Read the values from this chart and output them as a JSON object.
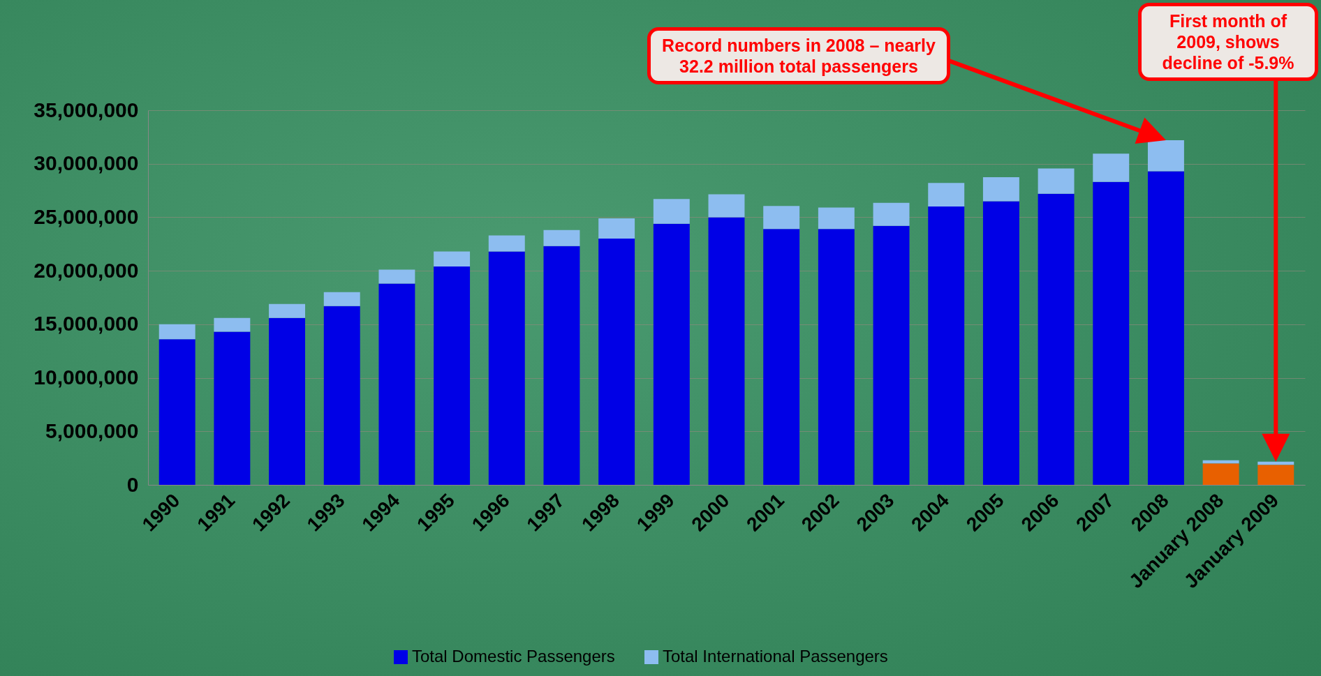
{
  "chart_data": {
    "type": "bar",
    "stacked": true,
    "categories": [
      "1990",
      "1991",
      "1992",
      "1993",
      "1994",
      "1995",
      "1996",
      "1997",
      "1998",
      "1999",
      "2000",
      "2001",
      "2002",
      "2003",
      "2004",
      "2005",
      "2006",
      "2007",
      "2008",
      "January 2008",
      "January 2009"
    ],
    "series": [
      {
        "name": "Total Domestic Passengers",
        "color": "#0000e6",
        "colors": [
          "#0000e6",
          "#0000e6",
          "#0000e6",
          "#0000e6",
          "#0000e6",
          "#0000e6",
          "#0000e6",
          "#0000e6",
          "#0000e6",
          "#0000e6",
          "#0000e6",
          "#0000e6",
          "#0000e6",
          "#0000e6",
          "#0000e6",
          "#0000e6",
          "#0000e6",
          "#0000e6",
          "#0000e6",
          "#e86000",
          "#e86000"
        ],
        "values": [
          13600000,
          14300000,
          15600000,
          16700000,
          18800000,
          20400000,
          21800000,
          22300000,
          23000000,
          24400000,
          25000000,
          23900000,
          23900000,
          24200000,
          26000000,
          26500000,
          27200000,
          28300000,
          29300000,
          1980000,
          1850000
        ]
      },
      {
        "name": "Total International Passengers",
        "color": "#8dbdf0",
        "values": [
          1400000,
          1300000,
          1300000,
          1300000,
          1300000,
          1400000,
          1500000,
          1500000,
          1900000,
          2300000,
          2150000,
          2150000,
          2000000,
          2150000,
          2200000,
          2250000,
          2350000,
          2650000,
          2900000,
          320000,
          320000
        ]
      }
    ],
    "ylim": [
      0,
      35000000
    ],
    "yticks": [
      0,
      {
        "value": 5000000,
        "label": "5,000,000"
      },
      {
        "value": 10000000,
        "label": "10,000,000"
      },
      {
        "value": 15000000,
        "label": "15,000,000"
      },
      {
        "value": 20000000,
        "label": "20,000,000"
      },
      {
        "value": 25000000,
        "label": "25,000,000"
      },
      {
        "value": 30000000,
        "label": "30,000,000"
      },
      {
        "value": 35000000,
        "label": "35,000,000"
      }
    ],
    "grid": "y",
    "legend": "bottom",
    "annotations": [
      "Record numbers in 2008 – nearly 32.2 million total passengers",
      "First month of 2009, shows decline of -5.9%"
    ]
  }
}
